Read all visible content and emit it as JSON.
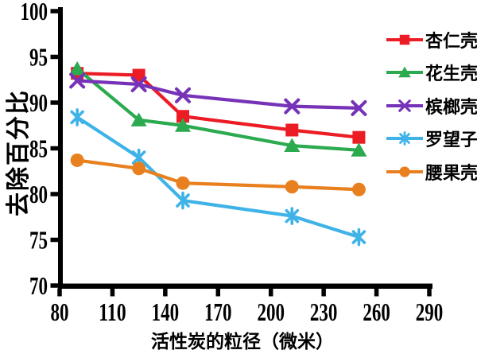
{
  "chart_data": {
    "type": "line",
    "title": "",
    "xlabel": "活性炭的粒径（微米）",
    "ylabel": "去除百分比",
    "xlim": [
      80,
      290
    ],
    "ylim": [
      70,
      100
    ],
    "x_ticks": [
      80,
      110,
      140,
      170,
      200,
      230,
      260,
      290
    ],
    "y_ticks": [
      70,
      75,
      80,
      85,
      90,
      95,
      100
    ],
    "grid": false,
    "legend_position": "right",
    "x": [
      90,
      125,
      150,
      212,
      250
    ],
    "series": [
      {
        "name": "杏仁壳",
        "marker": "square",
        "color": "#EC1C24",
        "values": [
          93.2,
          93.0,
          88.5,
          87.0,
          86.2
        ]
      },
      {
        "name": "花生壳",
        "marker": "triangle",
        "color": "#2BAA4F",
        "values": [
          93.7,
          88.1,
          87.5,
          85.3,
          84.8
        ]
      },
      {
        "name": "槟榔壳",
        "marker": "x",
        "color": "#7633B8",
        "values": [
          92.4,
          92.0,
          90.8,
          89.6,
          89.4
        ]
      },
      {
        "name": "罗望子",
        "marker": "asterisk",
        "color": "#3FB3E8",
        "values": [
          88.4,
          84.0,
          79.3,
          77.6,
          75.3
        ]
      },
      {
        "name": "腰果壳",
        "marker": "circle",
        "color": "#E8801F",
        "values": [
          83.7,
          82.8,
          81.2,
          80.8,
          80.5
        ]
      }
    ]
  }
}
